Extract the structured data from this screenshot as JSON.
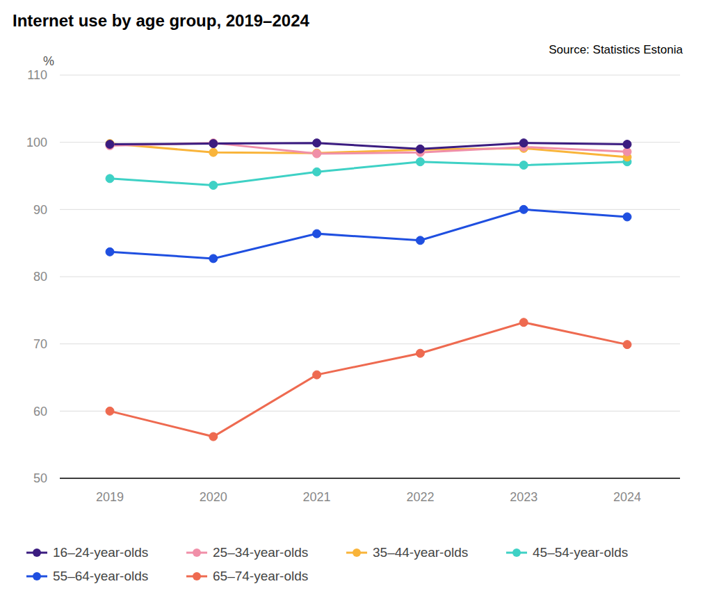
{
  "chart_data": {
    "type": "line",
    "title": "Internet use by age group, 2019–2024",
    "annotations": [
      "Source: Statistics Estonia"
    ],
    "y_label": "%",
    "categories": [
      "2019",
      "2020",
      "2021",
      "2022",
      "2023",
      "2024"
    ],
    "series": [
      {
        "name": "16–24-year-olds",
        "color": "#3b1c80",
        "values": [
          99.7,
          99.8,
          99.9,
          99.0,
          99.9,
          99.7
        ]
      },
      {
        "name": "25–34-year-olds",
        "color": "#f08fa8",
        "values": [
          99.5,
          99.9,
          98.3,
          98.5,
          99.3,
          98.6
        ]
      },
      {
        "name": "35–44-year-olds",
        "color": "#f9b43a",
        "values": [
          99.8,
          98.5,
          98.4,
          98.9,
          99.1,
          97.8
        ]
      },
      {
        "name": "45–54-year-olds",
        "color": "#3ed1c5",
        "values": [
          94.6,
          93.6,
          95.6,
          97.1,
          96.6,
          97.1
        ]
      },
      {
        "name": "55–64-year-olds",
        "color": "#1f4fe0",
        "values": [
          83.7,
          82.7,
          86.4,
          85.4,
          90.0,
          88.9
        ]
      },
      {
        "name": "65–74-year-olds",
        "color": "#ee6a50",
        "values": [
          60.0,
          56.2,
          65.4,
          68.6,
          73.2,
          69.9
        ]
      }
    ],
    "ylim": [
      50,
      110
    ],
    "yticks": [
      50,
      60,
      70,
      80,
      90,
      100,
      110
    ],
    "grid": true,
    "legend": "bottom",
    "marker": "circle"
  }
}
